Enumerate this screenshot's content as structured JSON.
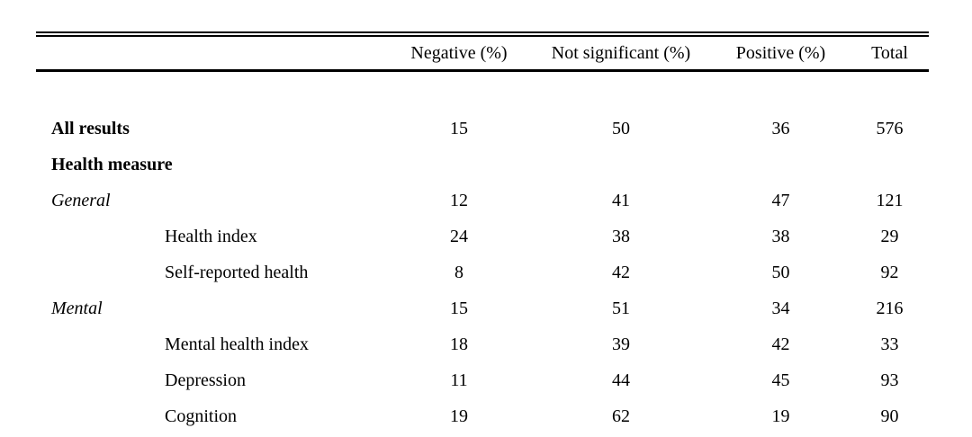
{
  "table": {
    "headers": [
      "Negative (%)",
      "Not significant (%)",
      "Positive (%)",
      "Total"
    ],
    "rows": [
      {
        "label": "All results",
        "style": "bold",
        "indent": 0,
        "values": [
          "15",
          "50",
          "36",
          "576"
        ]
      },
      {
        "label": "Health measure",
        "style": "bold",
        "indent": 0,
        "values": [
          "",
          "",
          "",
          ""
        ]
      },
      {
        "label": "General",
        "style": "italic",
        "indent": 0,
        "values": [
          "12",
          "41",
          "47",
          "121"
        ]
      },
      {
        "label": "Health index",
        "style": "normal",
        "indent": 1,
        "values": [
          "24",
          "38",
          "38",
          "29"
        ]
      },
      {
        "label": "Self-reported health",
        "style": "normal",
        "indent": 1,
        "values": [
          "8",
          "42",
          "50",
          "92"
        ]
      },
      {
        "label": "Mental",
        "style": "italic",
        "indent": 0,
        "values": [
          "15",
          "51",
          "34",
          "216"
        ]
      },
      {
        "label": "Mental health index",
        "style": "normal",
        "indent": 1,
        "values": [
          "18",
          "39",
          "42",
          "33"
        ]
      },
      {
        "label": "Depression",
        "style": "normal",
        "indent": 1,
        "values": [
          "11",
          "44",
          "45",
          "93"
        ]
      },
      {
        "label": "Cognition",
        "style": "normal",
        "indent": 1,
        "values": [
          "19",
          "62",
          "19",
          "90"
        ]
      }
    ]
  },
  "colors": {
    "text": "#000000",
    "background": "#ffffff",
    "rule": "#000000"
  }
}
